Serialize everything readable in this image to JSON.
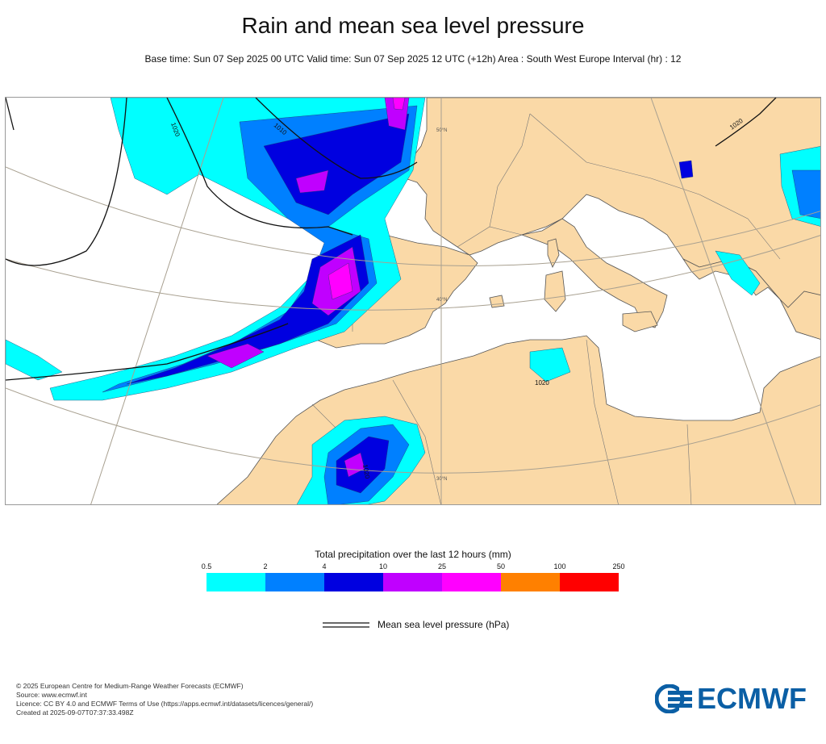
{
  "title": "Rain and mean sea level pressure",
  "subtitle": "Base time: Sun 07 Sep 2025 00 UTC Valid time: Sun 07 Sep 2025 12 UTC (+12h) Area : South West Europe Interval (hr) : 12",
  "map": {
    "isobar_labels": [
      "1020",
      "1010",
      "1020",
      "1020",
      "1020"
    ],
    "graticule_labels": [
      "50°N",
      "40°N",
      "30°N"
    ],
    "land_color": "#fad9a7",
    "sea_color": "#ffffff"
  },
  "legend": {
    "title": "Total precipitation over the last 12 hours (mm)",
    "ticks": [
      "0.5",
      "2",
      "4",
      "10",
      "25",
      "50",
      "100",
      "250"
    ],
    "colors": [
      "#00ffff",
      "#0080ff",
      "#0000e0",
      "#c000ff",
      "#ff00ff",
      "#ff8000",
      "#ff0000"
    ],
    "mslp_label": "Mean sea level pressure (hPa)"
  },
  "footer": {
    "line1": "© 2025 European Centre for Medium-Range Weather Forecasts (ECMWF)",
    "line2": "Source: www.ecmwf.int",
    "line3": "Licence: CC BY 4.0 and ECMWF Terms of Use (https://apps.ecmwf.int/datasets/licences/general/)",
    "line4": "Created at 2025-09-07T07:37:33.498Z"
  },
  "logo": {
    "text": "ECMWF",
    "color": "#0b5fa5"
  }
}
